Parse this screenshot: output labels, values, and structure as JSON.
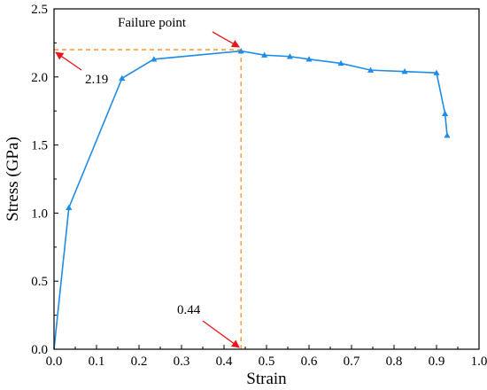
{
  "chart_data": {
    "type": "line",
    "title": "",
    "xlabel": "Strain",
    "ylabel": "Stress (GPa)",
    "xlim": [
      0.0,
      1.0
    ],
    "ylim": [
      0.0,
      2.5
    ],
    "xticks": [
      0.0,
      0.1,
      0.2,
      0.3,
      0.4,
      0.5,
      0.6,
      0.7,
      0.8,
      0.9,
      1.0
    ],
    "xtick_labels": [
      "0.0",
      "0.1",
      "0.2",
      "0.3",
      "0.4",
      "0.5",
      "0.6",
      "0.7",
      "0.8",
      "0.9",
      "1.0"
    ],
    "yticks": [
      0.0,
      0.5,
      1.0,
      1.5,
      2.0,
      2.5
    ],
    "ytick_labels": [
      "0.0",
      "0.5",
      "1.0",
      "1.5",
      "2.0",
      "2.5"
    ],
    "grid": false,
    "legend": "none",
    "series": [
      {
        "color": "#1f8ce6",
        "marker": "triangle",
        "x": [
          0.0,
          0.035,
          0.16,
          0.235,
          0.44,
          0.495,
          0.555,
          0.6,
          0.675,
          0.745,
          0.825,
          0.9,
          0.92,
          0.925
        ],
        "y": [
          0.0,
          1.04,
          1.99,
          2.13,
          2.19,
          2.16,
          2.15,
          2.13,
          2.1,
          2.05,
          2.04,
          2.03,
          1.73,
          1.57
        ]
      }
    ],
    "guide_lines": {
      "color": "#ff8c1a",
      "style": "dashed",
      "x": 0.44,
      "y": 2.2
    },
    "annotations": [
      {
        "text": "Failure point",
        "target_x": 0.44,
        "target_y": 2.2,
        "arrow_color": "#e8151b"
      },
      {
        "text": "2.19",
        "target_x": 0.0,
        "target_y": 2.2,
        "arrow_color": "#e8151b"
      },
      {
        "text": "0.44",
        "target_x": 0.44,
        "target_y": 0.0,
        "arrow_color": "#e8151b"
      }
    ]
  }
}
